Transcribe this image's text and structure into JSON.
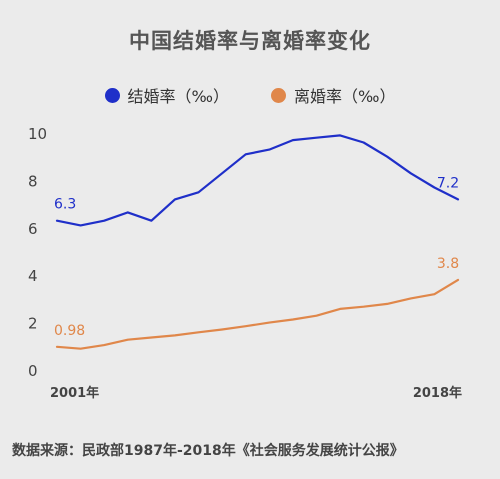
{
  "chart_data": {
    "type": "line",
    "title": "中国结婚率与离婚率变化",
    "x": [
      2001,
      2002,
      2003,
      2004,
      2005,
      2006,
      2007,
      2008,
      2009,
      2010,
      2011,
      2012,
      2013,
      2014,
      2015,
      2016,
      2017,
      2018
    ],
    "x_tick_labels": [
      "2001年",
      "2018年"
    ],
    "ylim": [
      0,
      10
    ],
    "y_ticks": [
      "0",
      "2",
      "4",
      "6",
      "8",
      "10"
    ],
    "grid": false,
    "legend_position": "top-center",
    "series": [
      {
        "name": "结婚率（‰）",
        "color": "#1f2fc9",
        "values": [
          6.3,
          6.1,
          6.3,
          6.65,
          6.3,
          7.2,
          7.5,
          8.3,
          9.1,
          9.3,
          9.7,
          9.8,
          9.9,
          9.6,
          9.0,
          8.3,
          7.7,
          7.2
        ],
        "point_labels": [
          {
            "index": 0,
            "text": "6.3"
          },
          {
            "index": 17,
            "text": "7.2"
          }
        ]
      },
      {
        "name": "离婚率（‰）",
        "color": "#e0874a",
        "values": [
          0.98,
          0.9,
          1.05,
          1.28,
          1.37,
          1.46,
          1.59,
          1.71,
          1.85,
          2.0,
          2.13,
          2.29,
          2.58,
          2.67,
          2.79,
          3.02,
          3.2,
          3.8
        ],
        "point_labels": [
          {
            "index": 0,
            "text": "0.98"
          },
          {
            "index": 17,
            "text": "3.8"
          }
        ]
      }
    ]
  },
  "source_text": "数据来源：民政部1987年-2018年《社会服务发展统计公报》"
}
